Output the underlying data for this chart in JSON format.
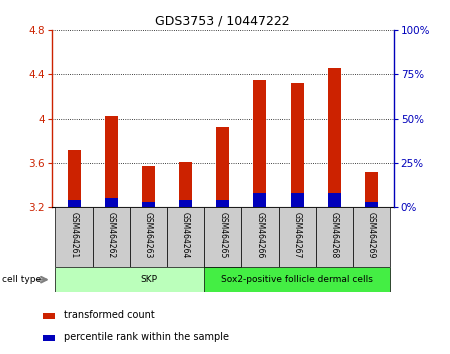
{
  "title": "GDS3753 / 10447222",
  "samples": [
    "GSM464261",
    "GSM464262",
    "GSM464263",
    "GSM464264",
    "GSM464265",
    "GSM464266",
    "GSM464267",
    "GSM464268",
    "GSM464269"
  ],
  "transformed_counts": [
    3.72,
    4.02,
    3.57,
    3.61,
    3.92,
    4.35,
    4.32,
    4.46,
    3.52
  ],
  "percentile_ranks": [
    4,
    5,
    3,
    4,
    4,
    8,
    8,
    8,
    3
  ],
  "base_value": 3.2,
  "ylim_left": [
    3.2,
    4.8
  ],
  "ylim_right": [
    0,
    100
  ],
  "yticks_left": [
    3.2,
    3.6,
    4.0,
    4.4,
    4.8
  ],
  "yticks_right": [
    0,
    25,
    50,
    75,
    100
  ],
  "bar_color_red": "#cc2200",
  "bar_color_blue": "#0000bb",
  "bar_width": 0.35,
  "cell_types": [
    {
      "label": "SKP",
      "start": 0,
      "end": 4,
      "color": "#bbffbb"
    },
    {
      "label": "Sox2-positive follicle dermal cells",
      "start": 4,
      "end": 8,
      "color": "#44ee44"
    }
  ],
  "legend_red": "transformed count",
  "legend_blue": "percentile rank within the sample",
  "cell_type_label": "cell type",
  "axis_color_left": "#cc2200",
  "axis_color_right": "#0000bb",
  "sample_box_color": "#cccccc",
  "title_fontsize": 9,
  "tick_fontsize": 7.5,
  "label_fontsize": 7
}
